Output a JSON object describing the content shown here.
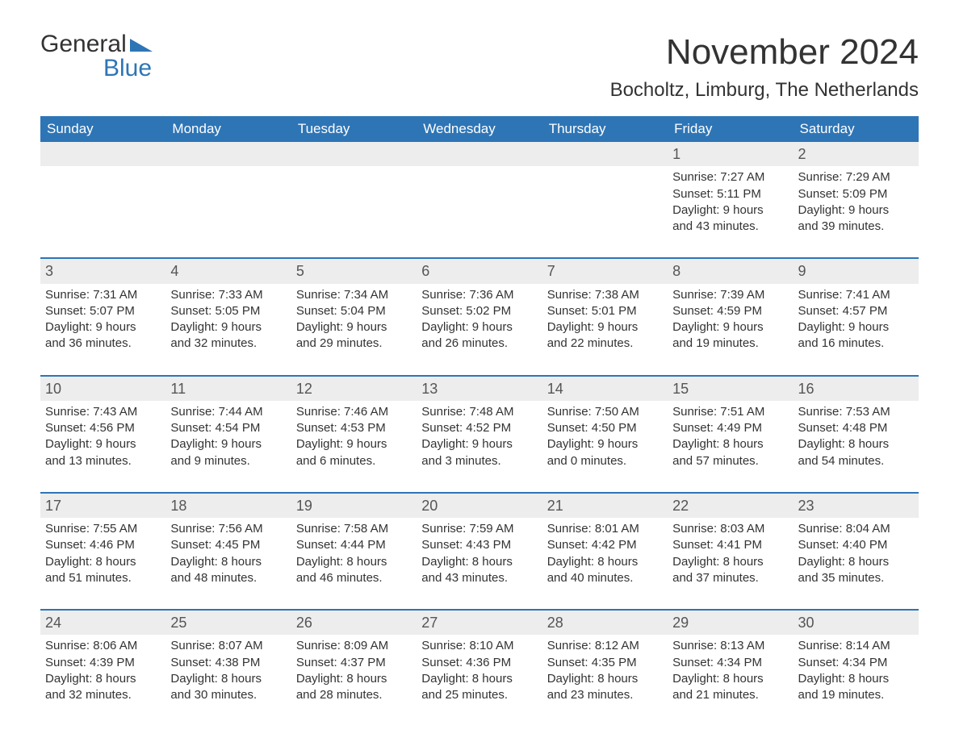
{
  "logo": {
    "word1": "General",
    "word2": "Blue",
    "flag_color": "#2e75b6"
  },
  "title": "November 2024",
  "location": "Bocholtz, Limburg, The Netherlands",
  "colors": {
    "header_bg": "#2e75b6",
    "header_text": "#ffffff",
    "week_divider": "#2e75b6",
    "daynum_bg": "#ededed",
    "text": "#333333",
    "background": "#ffffff"
  },
  "daysOfWeek": [
    "Sunday",
    "Monday",
    "Tuesday",
    "Wednesday",
    "Thursday",
    "Friday",
    "Saturday"
  ],
  "weeks": [
    [
      {
        "n": "",
        "lines": []
      },
      {
        "n": "",
        "lines": []
      },
      {
        "n": "",
        "lines": []
      },
      {
        "n": "",
        "lines": []
      },
      {
        "n": "",
        "lines": []
      },
      {
        "n": "1",
        "lines": [
          "Sunrise: 7:27 AM",
          "Sunset: 5:11 PM",
          "Daylight: 9 hours",
          "and 43 minutes."
        ]
      },
      {
        "n": "2",
        "lines": [
          "Sunrise: 7:29 AM",
          "Sunset: 5:09 PM",
          "Daylight: 9 hours",
          "and 39 minutes."
        ]
      }
    ],
    [
      {
        "n": "3",
        "lines": [
          "Sunrise: 7:31 AM",
          "Sunset: 5:07 PM",
          "Daylight: 9 hours",
          "and 36 minutes."
        ]
      },
      {
        "n": "4",
        "lines": [
          "Sunrise: 7:33 AM",
          "Sunset: 5:05 PM",
          "Daylight: 9 hours",
          "and 32 minutes."
        ]
      },
      {
        "n": "5",
        "lines": [
          "Sunrise: 7:34 AM",
          "Sunset: 5:04 PM",
          "Daylight: 9 hours",
          "and 29 minutes."
        ]
      },
      {
        "n": "6",
        "lines": [
          "Sunrise: 7:36 AM",
          "Sunset: 5:02 PM",
          "Daylight: 9 hours",
          "and 26 minutes."
        ]
      },
      {
        "n": "7",
        "lines": [
          "Sunrise: 7:38 AM",
          "Sunset: 5:01 PM",
          "Daylight: 9 hours",
          "and 22 minutes."
        ]
      },
      {
        "n": "8",
        "lines": [
          "Sunrise: 7:39 AM",
          "Sunset: 4:59 PM",
          "Daylight: 9 hours",
          "and 19 minutes."
        ]
      },
      {
        "n": "9",
        "lines": [
          "Sunrise: 7:41 AM",
          "Sunset: 4:57 PM",
          "Daylight: 9 hours",
          "and 16 minutes."
        ]
      }
    ],
    [
      {
        "n": "10",
        "lines": [
          "Sunrise: 7:43 AM",
          "Sunset: 4:56 PM",
          "Daylight: 9 hours",
          "and 13 minutes."
        ]
      },
      {
        "n": "11",
        "lines": [
          "Sunrise: 7:44 AM",
          "Sunset: 4:54 PM",
          "Daylight: 9 hours",
          "and 9 minutes."
        ]
      },
      {
        "n": "12",
        "lines": [
          "Sunrise: 7:46 AM",
          "Sunset: 4:53 PM",
          "Daylight: 9 hours",
          "and 6 minutes."
        ]
      },
      {
        "n": "13",
        "lines": [
          "Sunrise: 7:48 AM",
          "Sunset: 4:52 PM",
          "Daylight: 9 hours",
          "and 3 minutes."
        ]
      },
      {
        "n": "14",
        "lines": [
          "Sunrise: 7:50 AM",
          "Sunset: 4:50 PM",
          "Daylight: 9 hours",
          "and 0 minutes."
        ]
      },
      {
        "n": "15",
        "lines": [
          "Sunrise: 7:51 AM",
          "Sunset: 4:49 PM",
          "Daylight: 8 hours",
          "and 57 minutes."
        ]
      },
      {
        "n": "16",
        "lines": [
          "Sunrise: 7:53 AM",
          "Sunset: 4:48 PM",
          "Daylight: 8 hours",
          "and 54 minutes."
        ]
      }
    ],
    [
      {
        "n": "17",
        "lines": [
          "Sunrise: 7:55 AM",
          "Sunset: 4:46 PM",
          "Daylight: 8 hours",
          "and 51 minutes."
        ]
      },
      {
        "n": "18",
        "lines": [
          "Sunrise: 7:56 AM",
          "Sunset: 4:45 PM",
          "Daylight: 8 hours",
          "and 48 minutes."
        ]
      },
      {
        "n": "19",
        "lines": [
          "Sunrise: 7:58 AM",
          "Sunset: 4:44 PM",
          "Daylight: 8 hours",
          "and 46 minutes."
        ]
      },
      {
        "n": "20",
        "lines": [
          "Sunrise: 7:59 AM",
          "Sunset: 4:43 PM",
          "Daylight: 8 hours",
          "and 43 minutes."
        ]
      },
      {
        "n": "21",
        "lines": [
          "Sunrise: 8:01 AM",
          "Sunset: 4:42 PM",
          "Daylight: 8 hours",
          "and 40 minutes."
        ]
      },
      {
        "n": "22",
        "lines": [
          "Sunrise: 8:03 AM",
          "Sunset: 4:41 PM",
          "Daylight: 8 hours",
          "and 37 minutes."
        ]
      },
      {
        "n": "23",
        "lines": [
          "Sunrise: 8:04 AM",
          "Sunset: 4:40 PM",
          "Daylight: 8 hours",
          "and 35 minutes."
        ]
      }
    ],
    [
      {
        "n": "24",
        "lines": [
          "Sunrise: 8:06 AM",
          "Sunset: 4:39 PM",
          "Daylight: 8 hours",
          "and 32 minutes."
        ]
      },
      {
        "n": "25",
        "lines": [
          "Sunrise: 8:07 AM",
          "Sunset: 4:38 PM",
          "Daylight: 8 hours",
          "and 30 minutes."
        ]
      },
      {
        "n": "26",
        "lines": [
          "Sunrise: 8:09 AM",
          "Sunset: 4:37 PM",
          "Daylight: 8 hours",
          "and 28 minutes."
        ]
      },
      {
        "n": "27",
        "lines": [
          "Sunrise: 8:10 AM",
          "Sunset: 4:36 PM",
          "Daylight: 8 hours",
          "and 25 minutes."
        ]
      },
      {
        "n": "28",
        "lines": [
          "Sunrise: 8:12 AM",
          "Sunset: 4:35 PM",
          "Daylight: 8 hours",
          "and 23 minutes."
        ]
      },
      {
        "n": "29",
        "lines": [
          "Sunrise: 8:13 AM",
          "Sunset: 4:34 PM",
          "Daylight: 8 hours",
          "and 21 minutes."
        ]
      },
      {
        "n": "30",
        "lines": [
          "Sunrise: 8:14 AM",
          "Sunset: 4:34 PM",
          "Daylight: 8 hours",
          "and 19 minutes."
        ]
      }
    ]
  ]
}
